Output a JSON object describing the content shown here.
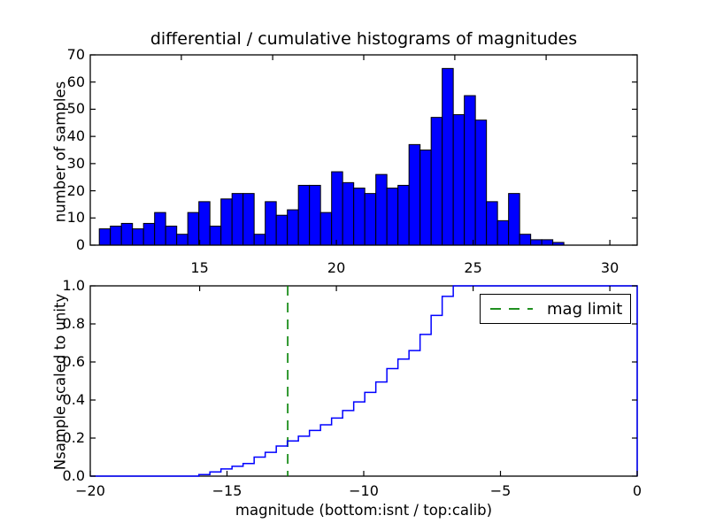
{
  "title": "differential / cumulative histograms of magnitudes",
  "colors": {
    "background": "#ffffff",
    "bar_fill": "#0000ff",
    "bar_edge": "#000000",
    "curve": "#0000ff",
    "vline_green": "#008000",
    "axis": "#000000",
    "text": "#000000"
  },
  "legend": {
    "entries": [
      {
        "label": "mag limit",
        "style": "dashed",
        "color": "#008000"
      }
    ],
    "position": "upper right"
  },
  "labels": {
    "ylabel_top": "number of samples",
    "ylabel_bottom": "Nsample scaled to unity",
    "xlabel": "magnitude (bottom:isnt / top:calib)"
  },
  "chart_data": [
    {
      "type": "bar",
      "subplot": "top",
      "title": "differential / cumulative histograms of magnitudes",
      "ylabel": "number of samples",
      "xlim": [
        11,
        31
      ],
      "ylim": [
        0,
        70
      ],
      "grid": false,
      "bin_start": 11.33,
      "bin_width": 0.4045,
      "values": [
        6,
        7,
        8,
        6,
        8,
        12,
        7,
        4,
        12,
        16,
        7,
        17,
        19,
        19,
        4,
        16,
        11,
        13,
        22,
        22,
        12,
        27,
        23,
        21,
        19,
        26,
        21,
        22,
        37,
        35,
        47,
        65,
        48,
        55,
        46,
        16,
        9,
        19,
        4,
        2,
        2,
        1
      ],
      "yticks": [
        0,
        10,
        20,
        30,
        40,
        50,
        60,
        70
      ],
      "yticklabels": [
        "0",
        "10",
        "20",
        "30",
        "40",
        "50",
        "60",
        "70"
      ],
      "xticks_labeled": [
        15,
        20,
        25,
        30
      ],
      "xticklabels": [
        "15",
        "20",
        "25",
        "30"
      ],
      "xticks_top_spine": [
        14.33,
        17.67,
        21.0,
        24.33,
        27.67
      ]
    },
    {
      "type": "line",
      "subplot": "bottom",
      "style": "cumulative-step",
      "ylabel": "Nsample scaled to unity",
      "xlabel": "magnitude (bottom:isnt / top:calib)",
      "xlim": [
        -20,
        0
      ],
      "ylim": [
        0.0,
        1.0
      ],
      "grid": false,
      "baseline_start_x": -20,
      "flat_end_x": 0,
      "closes_to_zero_at_right": true,
      "step_bin_start": -16.03,
      "step_bin_width": 0.4045,
      "cumulative_fractions": [
        0.008,
        0.022,
        0.038,
        0.052,
        0.066,
        0.1,
        0.125,
        0.158,
        0.185,
        0.21,
        0.24,
        0.27,
        0.305,
        0.345,
        0.39,
        0.44,
        0.495,
        0.565,
        0.615,
        0.66,
        0.745,
        0.845,
        0.945,
        1.0
      ],
      "yticks": [
        0.0,
        0.2,
        0.4,
        0.6,
        0.8,
        1.0
      ],
      "yticklabels": [
        "0.0",
        "0.2",
        "0.4",
        "0.6",
        "0.8",
        "1.0"
      ],
      "xticks": [
        -20,
        -15,
        -10,
        -5,
        0
      ],
      "xticklabels": [
        "−20",
        "−15",
        "−10",
        "−5",
        "0"
      ],
      "top_spine_ticks_calib": [
        15,
        20,
        25,
        30
      ],
      "vline": {
        "x": -12.78,
        "label": "mag limit",
        "color": "#008000",
        "style": "dashed"
      }
    }
  ]
}
